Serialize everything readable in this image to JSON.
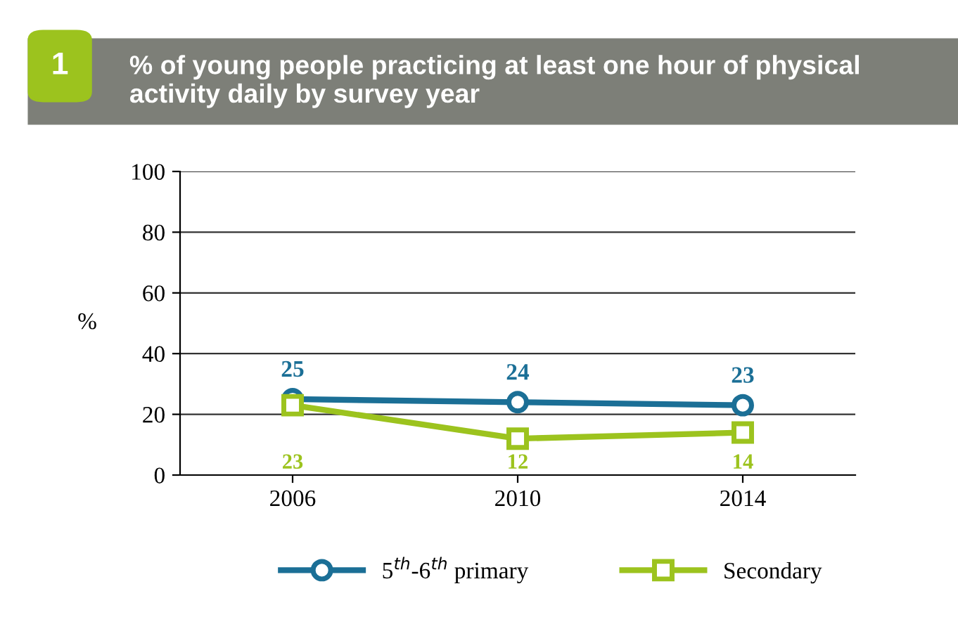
{
  "chart_data": {
    "type": "line",
    "title": "% of young people practicing at least one hour of physical activity daily by survey year",
    "annotations": [
      "1"
    ],
    "ylabel": "%",
    "categories": [
      "2006",
      "2010",
      "2014"
    ],
    "series": [
      {
        "name": "5$^{th}$-6$^{th}$ primary",
        "color": "#1b6f96",
        "values": [
          25,
          24,
          23
        ],
        "marker": "circle"
      },
      {
        "name": "Secondary",
        "color": "#9cc31e",
        "values": [
          23,
          12,
          14
        ],
        "marker": "square"
      }
    ],
    "ylim": [
      0,
      100
    ],
    "yticks": [
      0,
      20,
      40,
      60,
      80,
      100
    ],
    "grid": "y",
    "legend": "bottom",
    "data_labels": true,
    "line_style": "solid"
  }
}
